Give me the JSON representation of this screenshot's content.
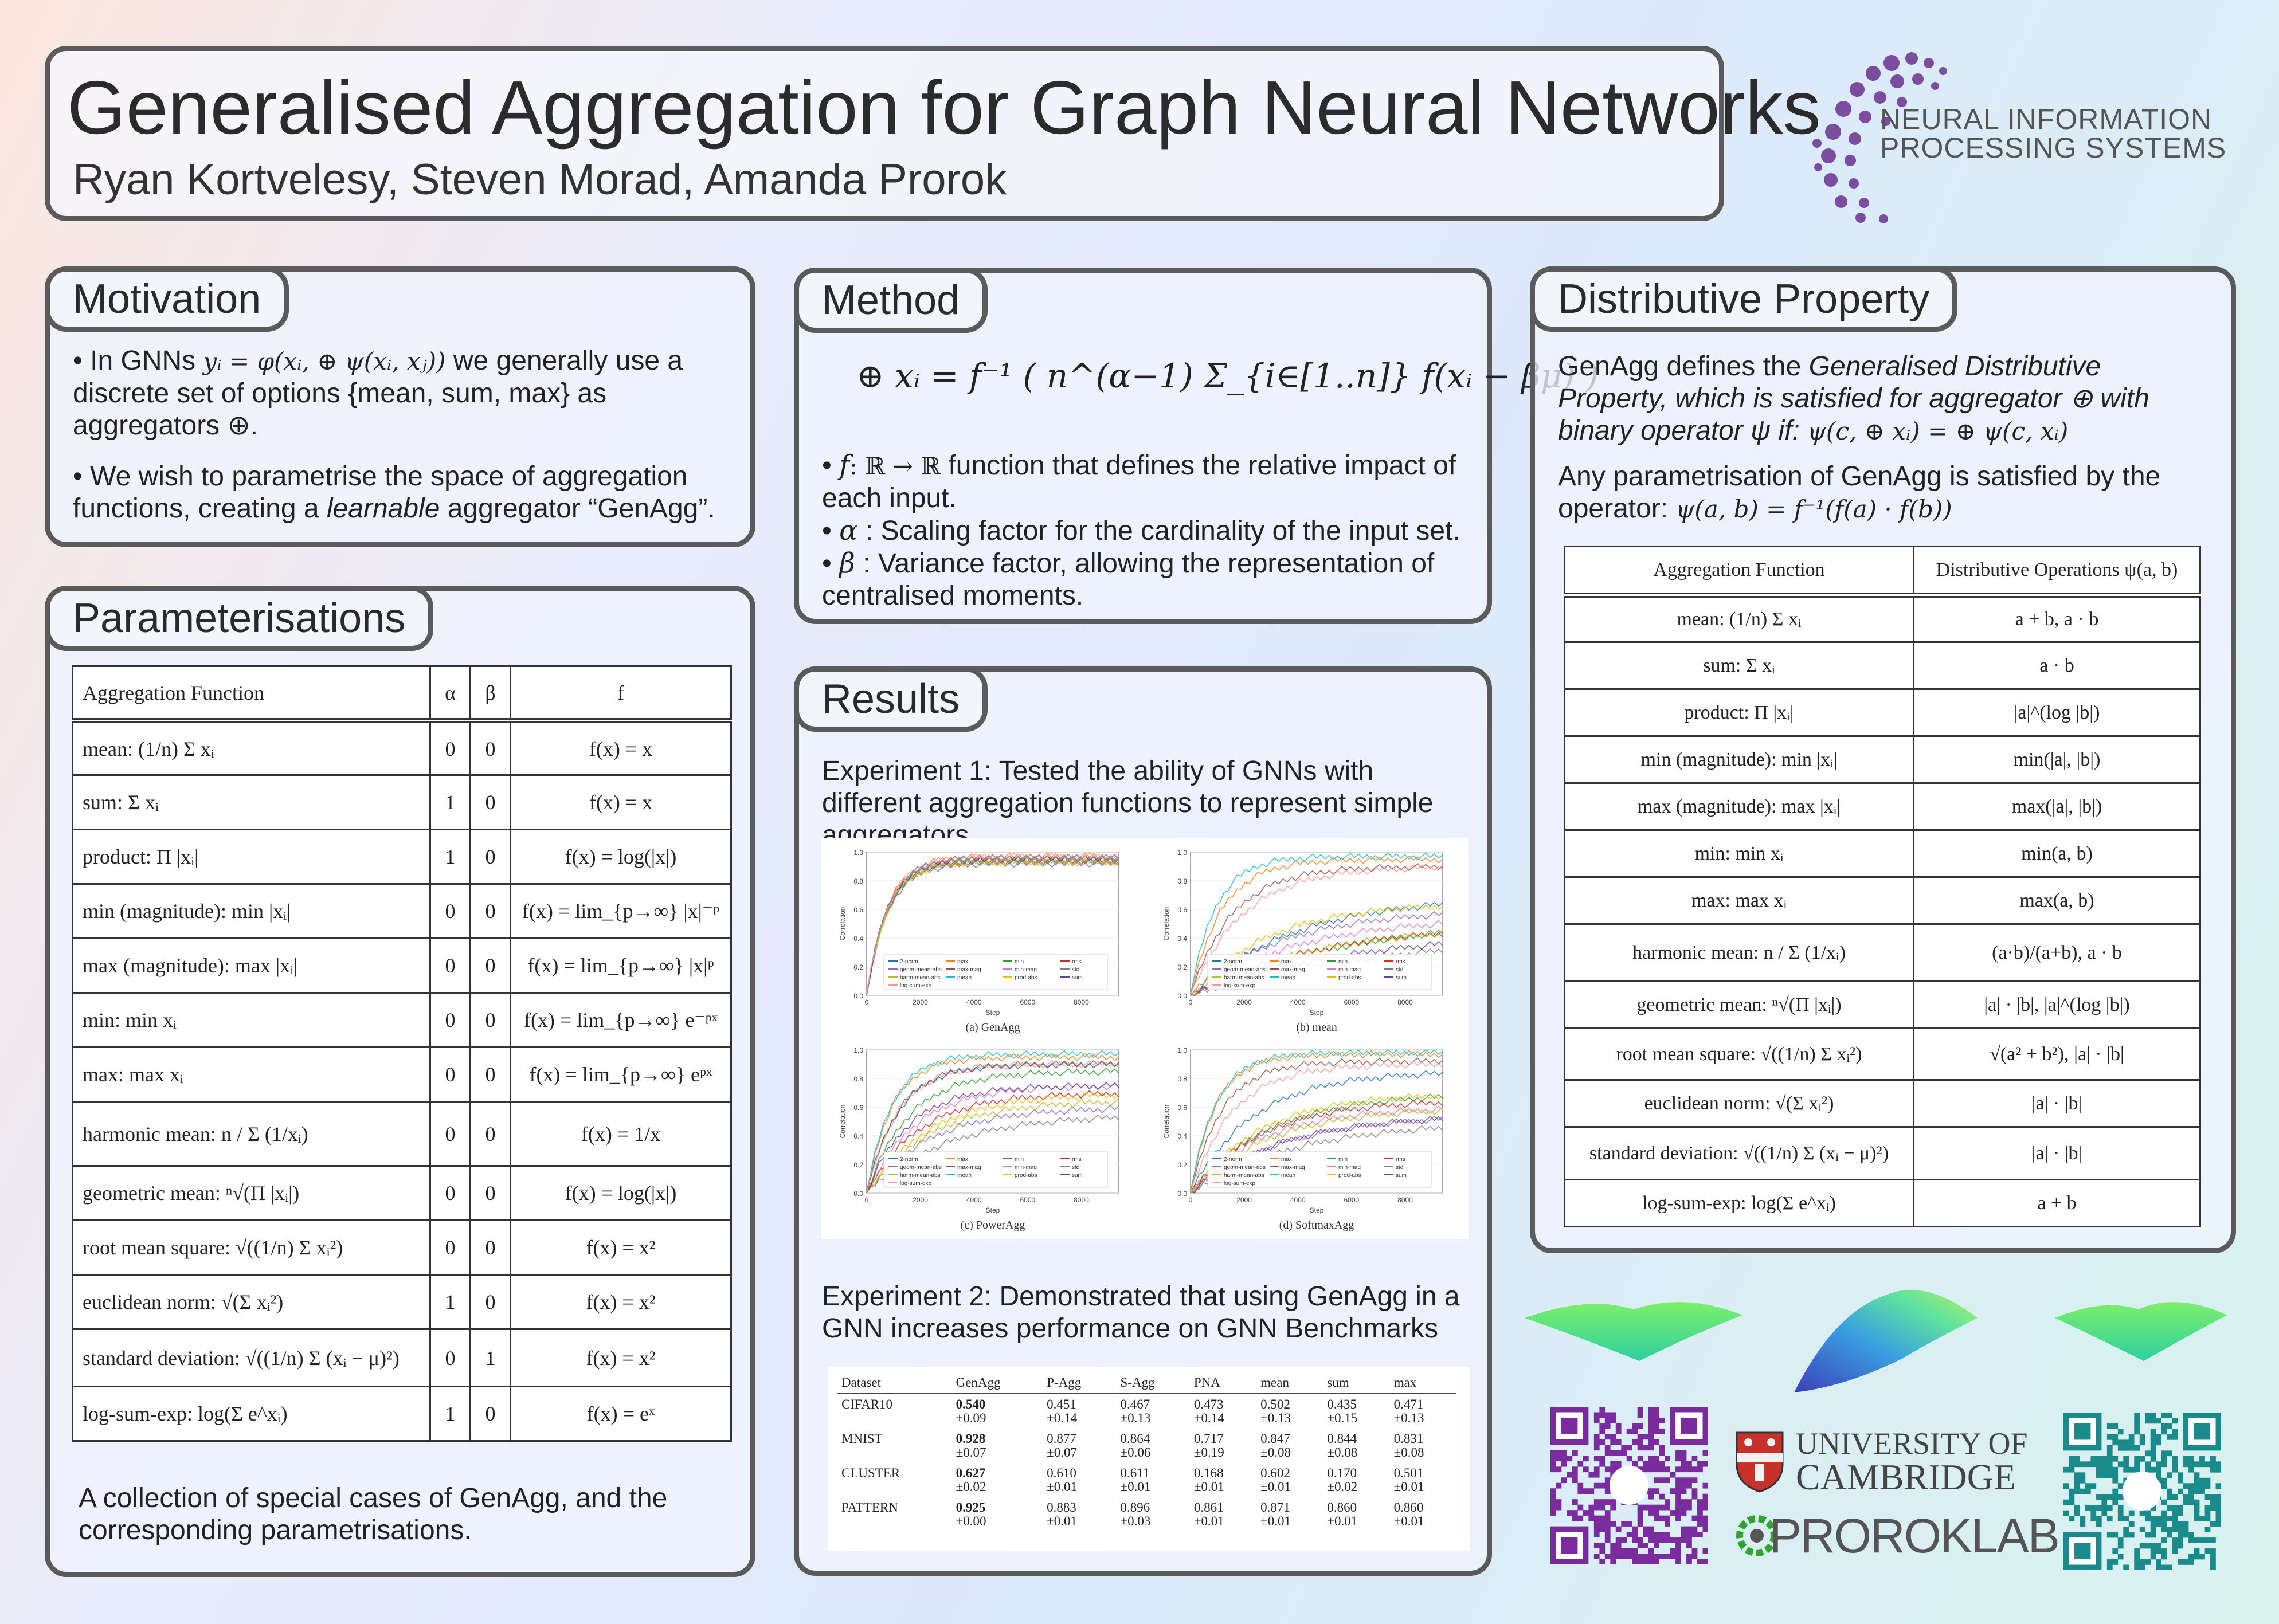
{
  "header": {
    "title": "Generalised Aggregation for Graph Neural Networks",
    "authors": "Ryan Kortvelesy, Steven Morad, Amanda Prorok"
  },
  "neurips": {
    "line1": "NEURAL INFORMATION",
    "line2": "PROCESSING SYSTEMS"
  },
  "motivation": {
    "title": "Motivation",
    "p1_pre": "• In GNNs",
    "p1_formula": "yᵢ = φ(xᵢ, ⊕ ψ(xᵢ, xⱼ))",
    "p1_post": "we generally use a discrete set of options {mean, sum, max} as aggregators ⊕.",
    "p2_pre": "• We wish to parametrise the space of aggregation functions, creating a ",
    "p2_em": "learnable",
    "p2_post": " aggregator “GenAgg”."
  },
  "method": {
    "title": "Method",
    "formula": "⊕ xᵢ = f⁻¹ ( n^(α−1) Σ_{i∈[1..n]} f(xᵢ − βμ) )",
    "b1_sym": "f",
    "b1_sig": ": ℝ → ℝ",
    "b1_text": " function that defines the relative impact of each input.",
    "b2_sym": "α",
    "b2_text": " : Scaling factor for the cardinality of the input set.",
    "b3_sym": "β",
    "b3_text": " : Variance factor, allowing the representation of centralised moments."
  },
  "parameterisations": {
    "title": "Parameterisations",
    "headers": [
      "Aggregation Function",
      "α",
      "β",
      "f"
    ],
    "rows": [
      [
        "mean: (1/n) Σ xᵢ",
        "0",
        "0",
        "f(x) = x"
      ],
      [
        "sum: Σ xᵢ",
        "1",
        "0",
        "f(x) = x"
      ],
      [
        "product: Π |xᵢ|",
        "1",
        "0",
        "f(x) = log(|x|)"
      ],
      [
        "min (magnitude): min |xᵢ|",
        "0",
        "0",
        "f(x) = lim_{p→∞} |x|⁻ᵖ"
      ],
      [
        "max (magnitude): max |xᵢ|",
        "0",
        "0",
        "f(x) = lim_{p→∞} |x|ᵖ"
      ],
      [
        "min: min xᵢ",
        "0",
        "0",
        "f(x) = lim_{p→∞} e⁻ᵖˣ"
      ],
      [
        "max: max xᵢ",
        "0",
        "0",
        "f(x) = lim_{p→∞} eᵖˣ"
      ],
      [
        "harmonic mean: n / Σ (1/xᵢ)",
        "0",
        "0",
        "f(x) = 1/x"
      ],
      [
        "geometric mean: ⁿ√(Π |xᵢ|)",
        "0",
        "0",
        "f(x) = log(|x|)"
      ],
      [
        "root mean square: √((1/n) Σ xᵢ²)",
        "0",
        "0",
        "f(x) = x²"
      ],
      [
        "euclidean norm: √(Σ xᵢ²)",
        "1",
        "0",
        "f(x) = x²"
      ],
      [
        "standard deviation: √((1/n) Σ (xᵢ − μ)²)",
        "0",
        "1",
        "f(x) = x²"
      ],
      [
        "log-sum-exp: log(Σ e^xᵢ)",
        "1",
        "0",
        "f(x) = eˣ"
      ]
    ],
    "caption": "A collection of special cases of GenAgg, and the corresponding parametrisations."
  },
  "results": {
    "title": "Results",
    "exp1": "Experiment 1: Tested the ability of GNNs with different aggregation functions to represent simple aggregators",
    "exp2": "Experiment 2: Demonstrated that using GenAgg in a GNN increases performance on GNN Benchmarks",
    "plot_captions": [
      "(a) GenAgg",
      "(b) mean",
      "(c) PowerAgg",
      "(d) SoftmaxAgg"
    ],
    "y_label": "Correlation",
    "x_label": "Step",
    "x_ticks": [
      "0",
      "2000",
      "4000",
      "6000",
      "8000"
    ],
    "y_ticks": [
      "0.0",
      "0.2",
      "0.4",
      "0.6",
      "0.8",
      "1.0"
    ],
    "legend": [
      "2-norm",
      "max",
      "min",
      "rms",
      "geom-mean-abs",
      "max-mag",
      "min-mag",
      "std",
      "harm-mean-abs",
      "mean",
      "prod-abs",
      "sum",
      "log-sum-exp"
    ],
    "table_headers": [
      "Dataset",
      "GenAgg",
      "P-Agg",
      "S-Agg",
      "PNA",
      "mean",
      "sum",
      "max"
    ],
    "table_rows": [
      {
        "dataset": "CIFAR10",
        "vals": [
          "0.540",
          "0.451",
          "0.467",
          "0.473",
          "0.502",
          "0.435",
          "0.471"
        ],
        "errs": [
          "±0.09",
          "±0.14",
          "±0.13",
          "±0.14",
          "±0.13",
          "±0.15",
          "±0.13"
        ]
      },
      {
        "dataset": "MNIST",
        "vals": [
          "0.928",
          "0.877",
          "0.864",
          "0.717",
          "0.847",
          "0.844",
          "0.831"
        ],
        "errs": [
          "±0.07",
          "±0.07",
          "±0.06",
          "±0.19",
          "±0.08",
          "±0.08",
          "±0.08"
        ]
      },
      {
        "dataset": "CLUSTER",
        "vals": [
          "0.627",
          "0.610",
          "0.611",
          "0.168",
          "0.602",
          "0.170",
          "0.501"
        ],
        "errs": [
          "±0.02",
          "±0.01",
          "±0.01",
          "±0.01",
          "±0.01",
          "±0.02",
          "±0.01"
        ]
      },
      {
        "dataset": "PATTERN",
        "vals": [
          "0.925",
          "0.883",
          "0.896",
          "0.861",
          "0.871",
          "0.860",
          "0.860"
        ],
        "errs": [
          "±0.00",
          "±0.01",
          "±0.03",
          "±0.01",
          "±0.01",
          "±0.01",
          "±0.01"
        ]
      }
    ]
  },
  "distributive": {
    "title": "Distributive Property",
    "p1_pre": "GenAgg defines the ",
    "p1_em": "Generalised Distributive Property, which is satisfied for aggregator ⊕ with binary operator ψ if:",
    "p1_formula": "ψ(c, ⊕ xᵢ) = ⊕ ψ(c, xᵢ)",
    "p2_pre": "Any parametrisation of GenAgg is satisfied by the operator:",
    "p2_formula": "ψ(a, b) = f⁻¹(f(a) · f(b))",
    "headers": [
      "Aggregation Function",
      "Distributive Operations ψ(a, b)"
    ],
    "rows": [
      [
        "mean: (1/n) Σ xᵢ",
        "a + b,   a · b"
      ],
      [
        "sum: Σ xᵢ",
        "a · b"
      ],
      [
        "product: Π |xᵢ|",
        "|a|^(log |b|)"
      ],
      [
        "min (magnitude): min |xᵢ|",
        "min(|a|, |b|)"
      ],
      [
        "max (magnitude): max |xᵢ|",
        "max(|a|, |b|)"
      ],
      [
        "min: min xᵢ",
        "min(a, b)"
      ],
      [
        "max: max xᵢ",
        "max(a, b)"
      ],
      [
        "harmonic mean: n / Σ (1/xᵢ)",
        "(a·b)/(a+b),   a · b"
      ],
      [
        "geometric mean: ⁿ√(Π |xᵢ|)",
        "|a| · |b|,   |a|^(log |b|)"
      ],
      [
        "root mean square: √((1/n) Σ xᵢ²)",
        "√(a² + b²),   |a| · |b|"
      ],
      [
        "euclidean norm: √(Σ xᵢ²)",
        "|a| · |b|"
      ],
      [
        "standard deviation: √((1/n) Σ (xᵢ − μ)²)",
        "|a| · |b|"
      ],
      [
        "log-sum-exp: log(Σ e^xᵢ)",
        "a + b"
      ]
    ]
  },
  "logos": {
    "cambridge1": "UNIVERSITY OF",
    "cambridge2": "CAMBRIDGE",
    "proroklab": "PROROKLAB"
  },
  "colors": {
    "border": "#5b5b5b",
    "neurips": "#7a4d9e",
    "qr1": "#7a2b9e",
    "qr2": "#1a8a8a",
    "prorok": "#2fa52f"
  }
}
